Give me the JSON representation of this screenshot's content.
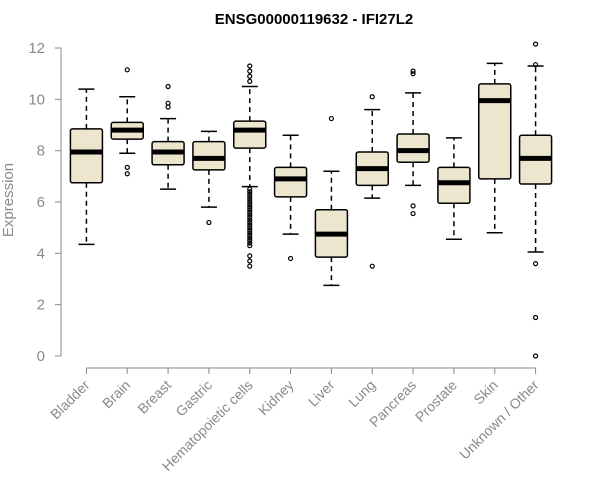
{
  "chart_data": {
    "type": "box",
    "title": "ENSG00000119632 - IFI27L2",
    "xlabel": "",
    "ylabel": "Expression",
    "ylim": [
      0,
      12
    ],
    "yticks": [
      0,
      2,
      4,
      6,
      8,
      10,
      12
    ],
    "box_fill": "#ede6cf",
    "box_stroke": "#000000",
    "categories": [
      "Bladder",
      "Brain",
      "Breast",
      "Gastric",
      "Hematopoietic cells",
      "Kidney",
      "Liver",
      "Lung",
      "Pancreas",
      "Prostate",
      "Skin",
      "Unknown / Other"
    ],
    "boxes": [
      {
        "name": "Bladder",
        "whisker_low": 4.35,
        "q1": 6.75,
        "median": 7.95,
        "q3": 8.85,
        "whisker_high": 10.4,
        "outliers": []
      },
      {
        "name": "Brain",
        "whisker_low": 7.9,
        "q1": 8.45,
        "median": 8.8,
        "q3": 9.1,
        "whisker_high": 10.1,
        "outliers": [
          7.1,
          7.35,
          11.15
        ]
      },
      {
        "name": "Breast",
        "whisker_low": 6.5,
        "q1": 7.45,
        "median": 7.95,
        "q3": 8.35,
        "whisker_high": 9.25,
        "outliers": [
          9.7,
          9.85,
          10.5
        ]
      },
      {
        "name": "Gastric",
        "whisker_low": 5.8,
        "q1": 7.25,
        "median": 7.7,
        "q3": 8.35,
        "whisker_high": 8.75,
        "outliers": [
          5.2
        ]
      },
      {
        "name": "Hematopoietic cells",
        "whisker_low": 6.6,
        "q1": 8.1,
        "median": 8.8,
        "q3": 9.15,
        "whisker_high": 10.5,
        "outliers": [
          3.5,
          3.7,
          3.9,
          4.3,
          4.4,
          4.5,
          4.6,
          4.7,
          4.8,
          4.9,
          5.0,
          5.1,
          5.2,
          5.3,
          5.4,
          5.5,
          5.6,
          5.7,
          5.8,
          5.9,
          6.0,
          6.1,
          6.2,
          6.3,
          6.4,
          6.5,
          10.7,
          10.9,
          11.1,
          11.3
        ]
      },
      {
        "name": "Kidney",
        "whisker_low": 4.75,
        "q1": 6.2,
        "median": 6.9,
        "q3": 7.35,
        "whisker_high": 8.6,
        "outliers": [
          3.8
        ]
      },
      {
        "name": "Liver",
        "whisker_low": 2.75,
        "q1": 3.85,
        "median": 4.75,
        "q3": 5.7,
        "whisker_high": 7.2,
        "outliers": [
          9.25
        ]
      },
      {
        "name": "Lung",
        "whisker_low": 6.15,
        "q1": 6.65,
        "median": 7.3,
        "q3": 7.95,
        "whisker_high": 9.6,
        "outliers": [
          3.5,
          10.1
        ]
      },
      {
        "name": "Pancreas",
        "whisker_low": 6.65,
        "q1": 7.55,
        "median": 8.0,
        "q3": 8.65,
        "whisker_high": 10.25,
        "outliers": [
          5.55,
          5.85,
          11.0,
          11.1
        ]
      },
      {
        "name": "Prostate",
        "whisker_low": 4.55,
        "q1": 5.95,
        "median": 6.75,
        "q3": 7.35,
        "whisker_high": 8.5,
        "outliers": []
      },
      {
        "name": "Skin",
        "whisker_low": 4.8,
        "q1": 6.9,
        "median": 9.95,
        "q3": 10.6,
        "whisker_high": 11.4,
        "outliers": []
      },
      {
        "name": "Unknown / Other",
        "whisker_low": 4.05,
        "q1": 6.7,
        "median": 7.7,
        "q3": 8.6,
        "whisker_high": 11.3,
        "outliers": [
          0.0,
          1.5,
          3.6,
          11.35,
          12.15
        ]
      }
    ]
  }
}
